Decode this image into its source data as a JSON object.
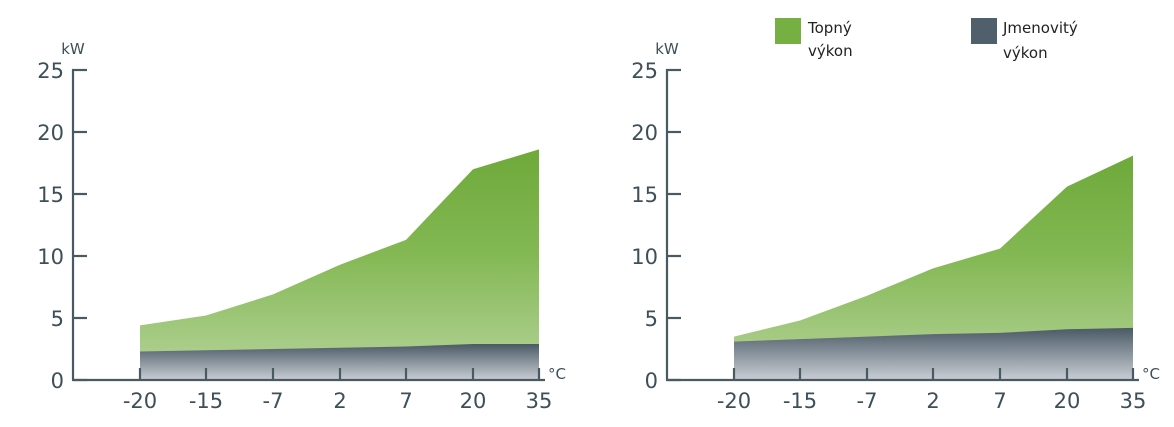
{
  "chart_data": [
    {
      "type": "area",
      "categories": [
        "-20",
        "-15",
        "-7",
        "2",
        "7",
        "20",
        "35"
      ],
      "ylim": [
        0,
        25
      ],
      "yticks": [
        "0",
        "5",
        "10",
        "15",
        "20",
        "25"
      ],
      "ylabel": "kW",
      "xlabel": "°C",
      "series": [
        {
          "values": [
            4.4,
            5.2,
            6.9,
            9.3,
            11.3,
            17.0,
            18.6
          ]
        },
        {
          "values": [
            2.3,
            2.4,
            2.5,
            2.6,
            2.7,
            2.9,
            2.9
          ]
        }
      ]
    },
    {
      "type": "area",
      "categories": [
        "-20",
        "-15",
        "-7",
        "2",
        "7",
        "20",
        "35"
      ],
      "ylim": [
        0,
        25
      ],
      "yticks": [
        "0",
        "5",
        "10",
        "15",
        "20",
        "25"
      ],
      "ylabel": "kW",
      "xlabel": "°C",
      "series": [
        {
          "name": "Topný výkon",
          "values": [
            3.5,
            4.8,
            6.8,
            9.0,
            10.6,
            15.6,
            18.1
          ]
        },
        {
          "name": "Jmenovitý výkon",
          "values": [
            3.1,
            3.3,
            3.5,
            3.7,
            3.8,
            4.1,
            4.2
          ]
        }
      ]
    }
  ],
  "legend": {
    "items": [
      {
        "label_line1": "Topný",
        "label_line2": "výkon",
        "color": "#77b042"
      },
      {
        "label_line1": "Jmenovitý",
        "label_line2": "výkon",
        "color": "#4f5f6b"
      }
    ]
  }
}
